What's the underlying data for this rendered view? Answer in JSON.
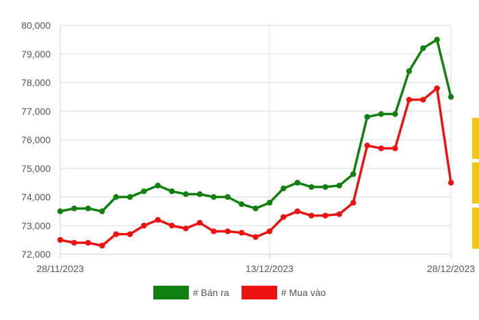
{
  "chart_data": {
    "type": "line",
    "title": "",
    "xlabel": "",
    "ylabel": "",
    "ylim": [
      72000,
      80000
    ],
    "y_ticks": [
      72000,
      73000,
      74000,
      75000,
      76000,
      77000,
      78000,
      79000,
      80000
    ],
    "y_tick_labels": [
      "72,000",
      "73,000",
      "74,000",
      "75,000",
      "76,000",
      "77,000",
      "78,000",
      "79,000",
      "80,000"
    ],
    "x_tick_labels": [
      {
        "index": 0,
        "label": "28/11/2023"
      },
      {
        "index": 15,
        "label": "13/12/2023"
      },
      {
        "index": 28,
        "label": "28/12/2023"
      }
    ],
    "grid": true,
    "legend_placement": "bottom",
    "series": [
      {
        "name": "# Bán ra",
        "color": "#118011",
        "values": [
          73500,
          73600,
          73600,
          73500,
          74000,
          74000,
          74200,
          74400,
          74200,
          74100,
          74100,
          74000,
          74000,
          73750,
          73600,
          73800,
          74300,
          74500,
          74350,
          74350,
          74400,
          74800,
          76800,
          76900,
          76900,
          78400,
          79200,
          79500,
          77500
        ]
      },
      {
        "name": "# Mua vào",
        "color": "#ee1111",
        "values": [
          72500,
          72400,
          72400,
          72300,
          72700,
          72700,
          73000,
          73200,
          73000,
          72900,
          73100,
          72800,
          72800,
          72750,
          72600,
          72800,
          73300,
          73500,
          73350,
          73350,
          73400,
          73800,
          75800,
          75700,
          75700,
          77400,
          77400,
          77800,
          74500
        ]
      }
    ]
  },
  "side_accent_color": "#f0c419"
}
